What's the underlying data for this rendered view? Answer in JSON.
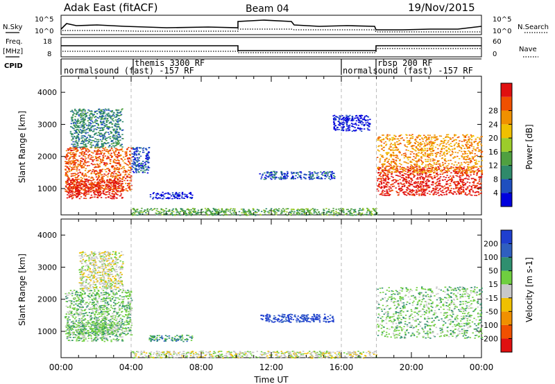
{
  "header": {
    "station": "Adak East (fitACF)",
    "beam": "Beam 04",
    "date": "19/Nov/2015"
  },
  "left_labels": {
    "nsky": "N.Sky",
    "freq": "Freq.",
    "freq_unit": "[MHz]",
    "cpid": "CPID"
  },
  "right_labels": {
    "nsearch": "N.Search",
    "nave": "Nave"
  },
  "noise_axis": {
    "left_ticks": [
      "10^5",
      "10^0"
    ],
    "right_ticks": [
      "10^5",
      "10^0"
    ]
  },
  "freq_axis": {
    "left_ticks": [
      "18",
      "8"
    ],
    "right_ticks": [
      "60",
      "0"
    ]
  },
  "cpid_labels": [
    "normalsound (fast) -157 RF",
    "themis 3300 RF",
    "normalsound (fast) -157 RF",
    "rbsp 200 RF"
  ],
  "colors": {
    "power": [
      "#0000dd",
      "#1f4fbf",
      "#2f8a6a",
      "#4fa040",
      "#9ccc2a",
      "#f0c000",
      "#f09000",
      "#f05000",
      "#e01010"
    ],
    "velocity": [
      "#1f3fcf",
      "#2f5fbf",
      "#2f8f6f",
      "#6fcf3f",
      "#c8c8c8",
      "#f0c000",
      "#f09000",
      "#f05000",
      "#e01010"
    ],
    "ground": "#c0c0c0"
  },
  "chart_data": [
    {
      "type": "heatmap",
      "name": "power",
      "xlabel": "",
      "ylabel": "Slant Range [km]",
      "colorbar_label": "Power [dB]",
      "colorbar_ticks": [
        "4",
        "8",
        "12",
        "16",
        "20",
        "24",
        "28"
      ],
      "x_range": [
        0,
        24
      ],
      "y_range": [
        180,
        4500
      ],
      "y_ticks": [
        "1000",
        "2000",
        "3000",
        "4000"
      ],
      "regions": [
        {
          "t0": 0.2,
          "t1": 4.0,
          "r0": 900,
          "r1": 2300,
          "level": 8
        },
        {
          "t0": 0.3,
          "t1": 3.5,
          "r0": 700,
          "r1": 1300,
          "level": 9
        },
        {
          "t0": 0.5,
          "t1": 3.5,
          "r0": 2300,
          "r1": 3500,
          "level": 3
        },
        {
          "t0": 4.0,
          "t1": 5.0,
          "r0": 1500,
          "r1": 2300,
          "level": 2
        },
        {
          "t0": 5.0,
          "t1": 7.5,
          "r0": 700,
          "r1": 900,
          "level": 1
        },
        {
          "t0": 11.3,
          "t1": 15.6,
          "r0": 1300,
          "r1": 1550,
          "level": 2
        },
        {
          "t0": 4.0,
          "t1": 18.0,
          "r0": 180,
          "r1": 400,
          "level": 4
        },
        {
          "t0": 15.5,
          "t1": 17.6,
          "r0": 2800,
          "r1": 3300,
          "level": 1
        },
        {
          "t0": 18.0,
          "t1": 24.0,
          "r0": 800,
          "r1": 1700,
          "level": 9
        },
        {
          "t0": 18.0,
          "t1": 24.0,
          "r0": 1500,
          "r1": 2700,
          "level": 7
        }
      ]
    },
    {
      "type": "heatmap",
      "name": "velocity",
      "xlabel": "Time UT",
      "ylabel": "Slant Range [km]",
      "colorbar_label": "Velocity [m s-1]",
      "colorbar_ticks": [
        "200",
        "100",
        "50",
        "15",
        "-15",
        "-50",
        "-100",
        "-200"
      ],
      "x_range": [
        0,
        24
      ],
      "x_ticks": [
        "00:00",
        "04:00",
        "08:00",
        "12:00",
        "16:00",
        "20:00",
        "00:00"
      ],
      "y_range": [
        180,
        4500
      ],
      "y_ticks": [
        "1000",
        "2000",
        "3000",
        "4000"
      ],
      "regions": [
        {
          "t0": 0.2,
          "t1": 4.0,
          "r0": 900,
          "r1": 2300,
          "level": 4
        },
        {
          "t0": 0.3,
          "t1": 3.5,
          "r0": 700,
          "r1": 1300,
          "level": 4
        },
        {
          "t0": 1.0,
          "t1": 3.5,
          "r0": 2300,
          "r1": 3500,
          "level": 5
        },
        {
          "t0": 5.0,
          "t1": 7.5,
          "r0": 700,
          "r1": 900,
          "level": 3
        },
        {
          "t0": 11.3,
          "t1": 15.6,
          "r0": 1300,
          "r1": 1550,
          "level": 1
        },
        {
          "t0": 4.0,
          "t1": 18.0,
          "r0": 180,
          "r1": 400,
          "level": 5
        },
        {
          "t0": 18.0,
          "t1": 24.0,
          "r0": 800,
          "r1": 2400,
          "level": 4
        }
      ]
    }
  ]
}
